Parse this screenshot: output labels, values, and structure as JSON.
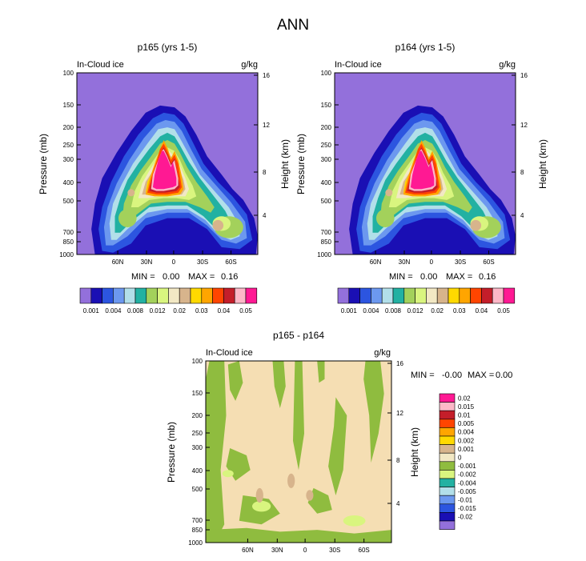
{
  "page_title": "ANN",
  "chart_data": [
    {
      "type": "heatmap",
      "title": "p165 (yrs 1-5)",
      "variable": "In-Cloud ice",
      "units": "g/kg",
      "xlabel": "",
      "ylabel": "Pressure (mb)",
      "y2label": "Height (km)",
      "x_ticks": [
        "60N",
        "30N",
        "0",
        "30S",
        "60S"
      ],
      "y_ticks": [
        "100",
        "150",
        "200",
        "250",
        "300",
        "400",
        "500",
        "700",
        "850",
        "1000"
      ],
      "y2_ticks": [
        "16",
        "12",
        "8",
        "4"
      ],
      "stats": {
        "min_label": "MIN =",
        "min": "0.00",
        "max_label": "MAX =",
        "max": "0.16"
      },
      "levels": [
        "0.001",
        "0.004",
        "0.008",
        "0.012",
        "0.02",
        "0.03",
        "0.04",
        "0.05"
      ],
      "background_color": "#9370db",
      "field": {
        "lat_range": [
          "85N",
          "85S"
        ],
        "pressure_range": [
          100,
          1000
        ],
        "peak_value": 0.16,
        "peak_location": {
          "lat": "~5N",
          "pressure_mb": 400
        }
      }
    },
    {
      "type": "heatmap",
      "title": "p164 (yrs 1-5)",
      "variable": "In-Cloud ice",
      "units": "g/kg",
      "xlabel": "",
      "ylabel": "Pressure (mb)",
      "y2label": "Height (km)",
      "x_ticks": [
        "60N",
        "30N",
        "0",
        "30S",
        "60S"
      ],
      "y_ticks": [
        "100",
        "150",
        "200",
        "250",
        "300",
        "400",
        "500",
        "700",
        "850",
        "1000"
      ],
      "y2_ticks": [
        "16",
        "12",
        "8",
        "4"
      ],
      "stats": {
        "min_label": "MIN =",
        "min": "0.00",
        "max_label": "MAX =",
        "max": "0.16"
      },
      "levels": [
        "0.001",
        "0.004",
        "0.008",
        "0.012",
        "0.02",
        "0.03",
        "0.04",
        "0.05"
      ],
      "background_color": "#9370db",
      "field": {
        "lat_range": [
          "85N",
          "85S"
        ],
        "pressure_range": [
          100,
          1000
        ],
        "peak_value": 0.16,
        "peak_location": {
          "lat": "~5N",
          "pressure_mb": 400
        }
      }
    },
    {
      "type": "heatmap",
      "title": "p165 - p164",
      "variable": "In-Cloud ice",
      "units": "g/kg",
      "xlabel": "",
      "ylabel": "Pressure (mb)",
      "y2label": "Height (km)",
      "x_ticks": [
        "60N",
        "30N",
        "0",
        "30S",
        "60S"
      ],
      "y_ticks": [
        "100",
        "150",
        "200",
        "250",
        "300",
        "400",
        "500",
        "700",
        "850",
        "1000"
      ],
      "y2_ticks": [
        "16",
        "12",
        "8",
        "4"
      ],
      "stats": {
        "min_label": "MIN =",
        "min": "-0.00",
        "max_label": "MAX =",
        "max": "0.00"
      },
      "levels": [
        "0.02",
        "0.015",
        "0.01",
        "0.005",
        "0.004",
        "0.002",
        "0.001",
        "0",
        "-0.001",
        "-0.002",
        "-0.004",
        "-0.005",
        "-0.01",
        "-0.015",
        "-0.02"
      ],
      "background_color": "#f5deb3",
      "field": {
        "lat_range": [
          "85N",
          "85S"
        ],
        "pressure_range": [
          100,
          1000
        ],
        "dominant_bins": [
          "0",
          "-0.001",
          "0.001"
        ]
      }
    }
  ],
  "colors": {
    "main_scale": [
      "#9370db",
      "#1a0fb4",
      "#2c55e0",
      "#6c98ef",
      "#b2dfe9",
      "#22b1a2",
      "#a3d15b",
      "#d9f57f",
      "#f2e8c4",
      "#d7b48c",
      "#ffd900",
      "#ffa500",
      "#ff4500",
      "#c41e2a",
      "#fdb8c8",
      "#ff1993"
    ],
    "diff_scale": [
      "#ff1993",
      "#fdb8c8",
      "#c41e2a",
      "#ff4500",
      "#ffa500",
      "#ffd900",
      "#d7b48c",
      "#f2e8c4",
      "#8fbc3f",
      "#d9f57f",
      "#22b1a2",
      "#b2dfe9",
      "#6c98ef",
      "#2c55e0",
      "#1a0fb4",
      "#9370db"
    ]
  }
}
